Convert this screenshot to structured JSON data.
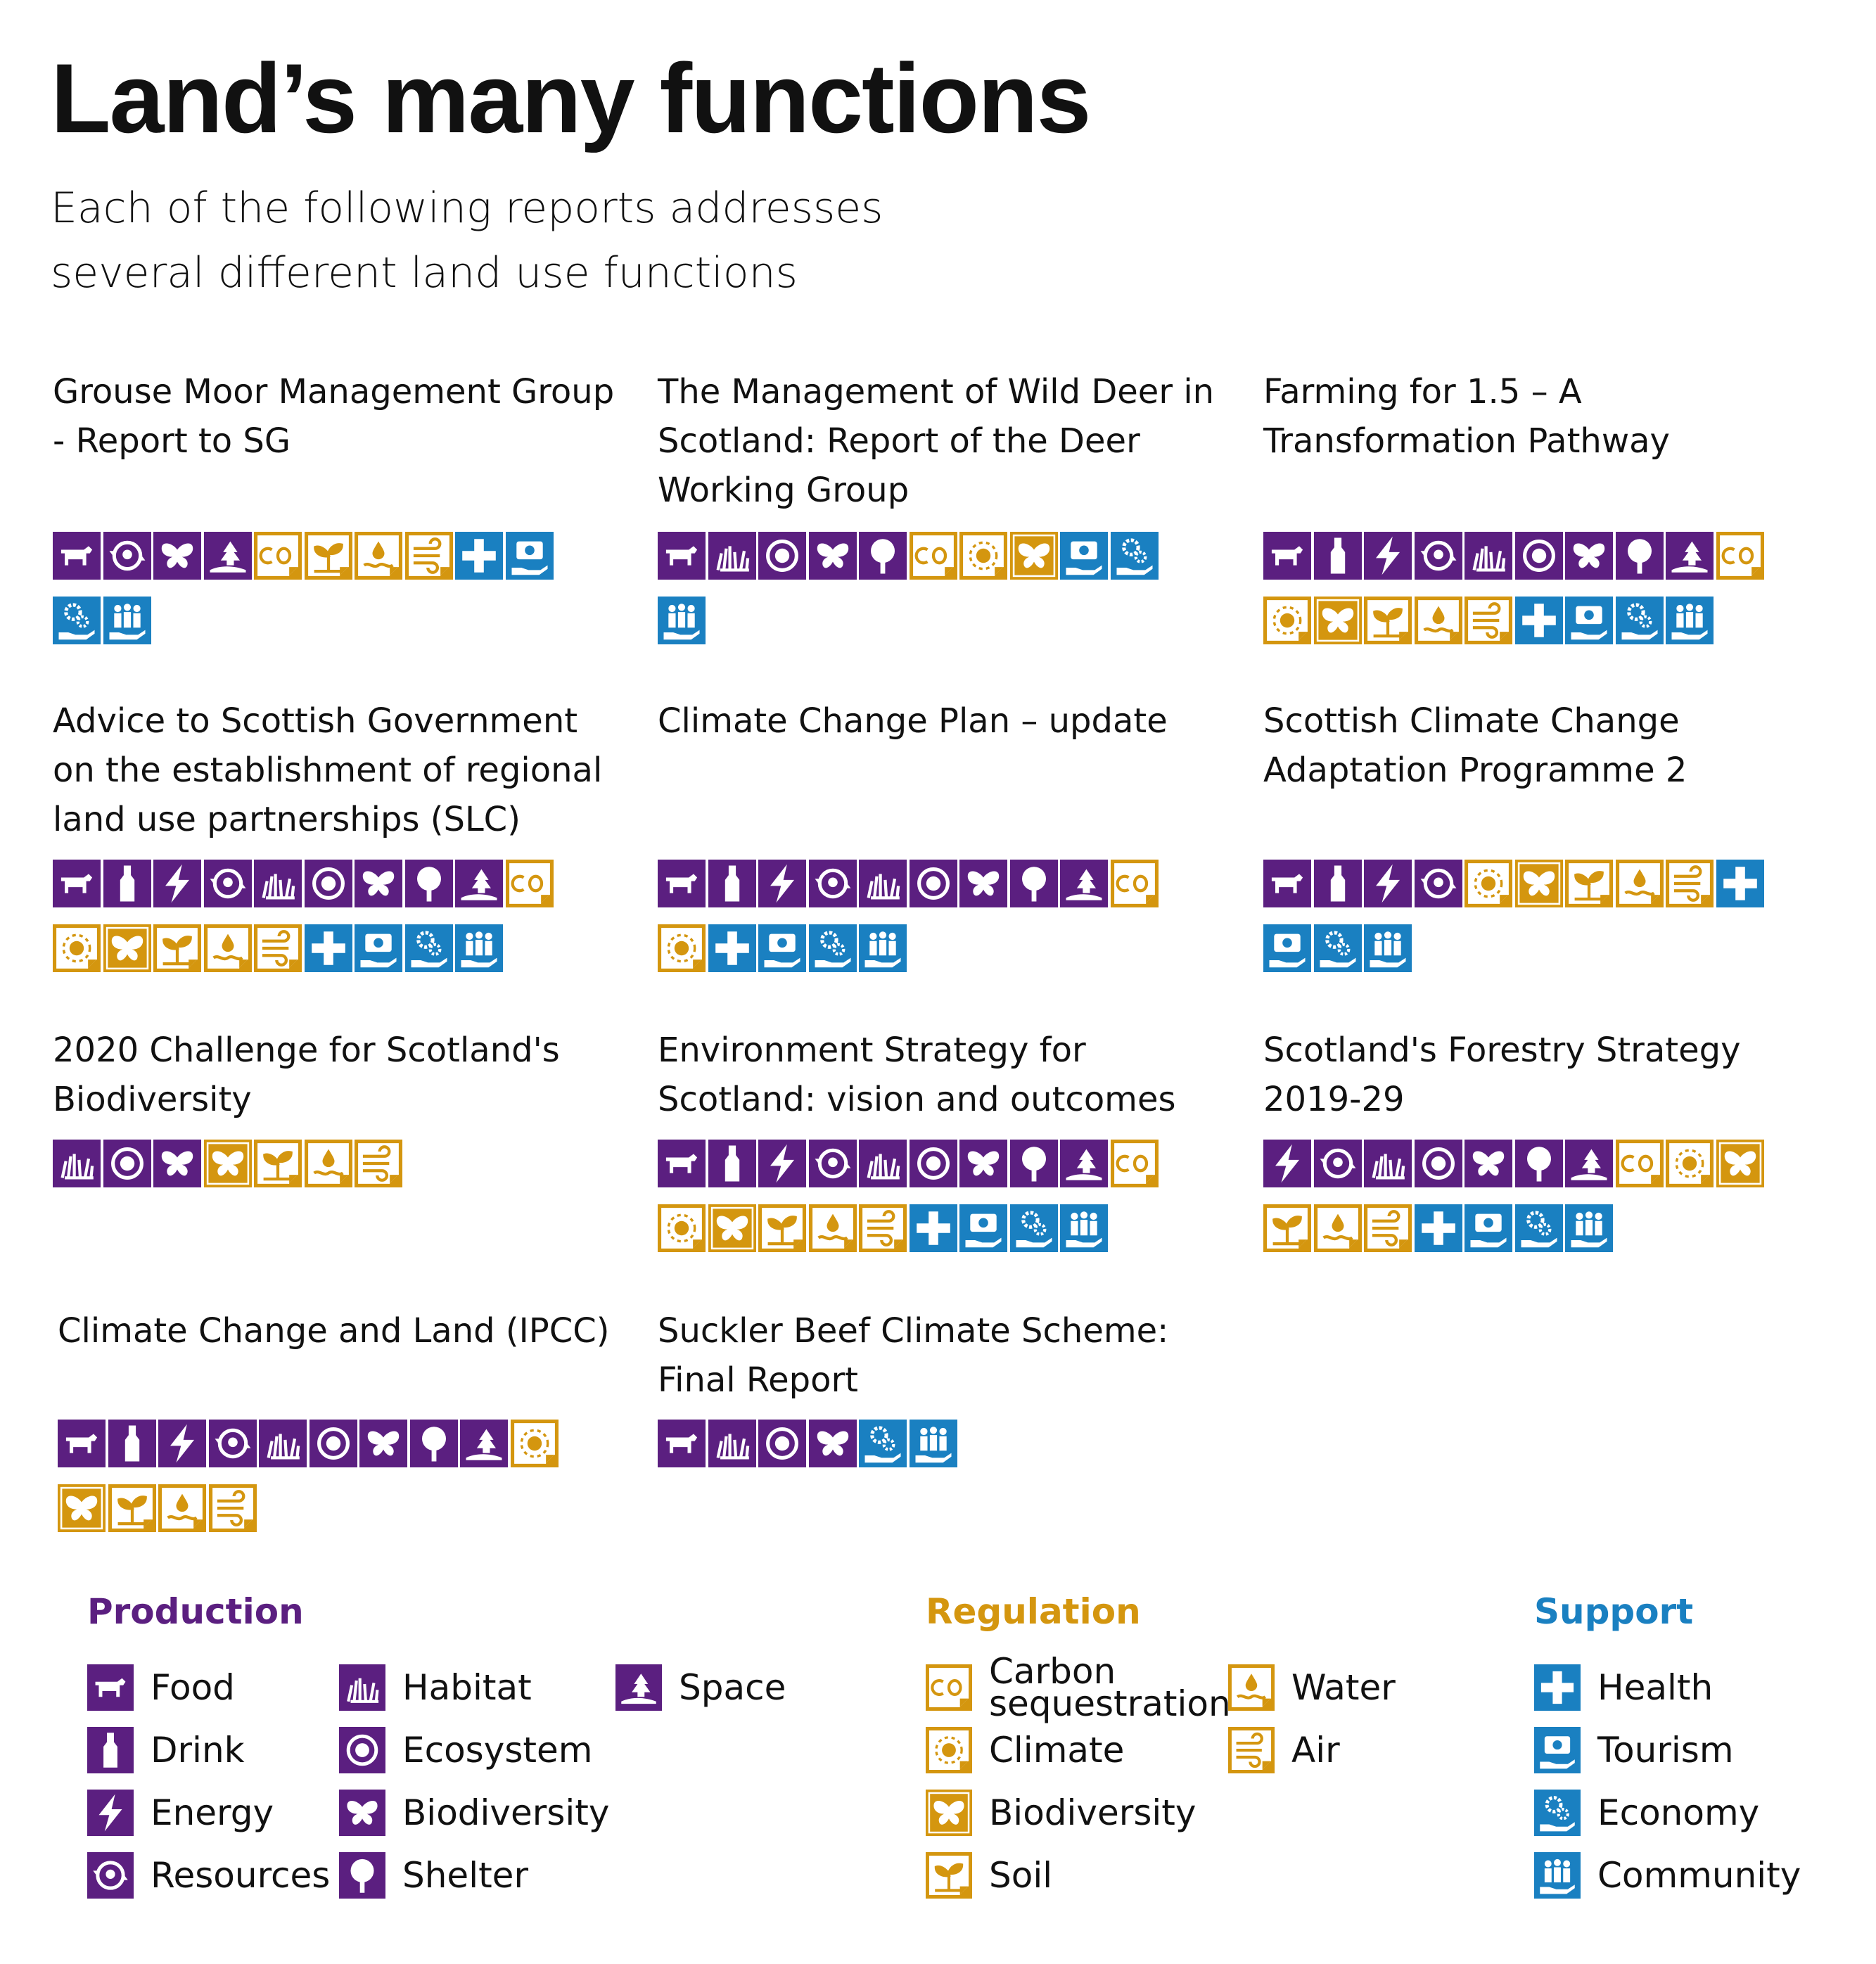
{
  "header": {
    "title": "Land’s many functions",
    "subtitle": "Each of the following reports addresses several different land use functions"
  },
  "reports": [
    {
      "title": "Grouse Moor Management Group - Report to SG"
    },
    {
      "title": "The Management of Wild Deer in Scotland: Report of the Deer Working Group"
    },
    {
      "title": "Farming for 1.5 – A  Transformation Pathway"
    },
    {
      "title": "Advice to Scottish Government on the establishment of regional land use partnerships (SLC)"
    },
    {
      "title": "Climate Change Plan – update"
    },
    {
      "title": "Scottish Climate Change Adaptation Programme 2"
    },
    {
      "title": "2020 Challenge for Scotland's Biodiversity"
    },
    {
      "title": "Environment Strategy for Scotland: vision and outcomes"
    },
    {
      "title": "Scotland's Forestry Strategy 2019-29"
    },
    {
      "title": "Climate Change and Land (IPCC)"
    },
    {
      "title": "Suckler Beef Climate Scheme: Final Report"
    }
  ],
  "legend": {
    "groups": [
      {
        "name": "Production",
        "items": [
          "Food",
          "Drink",
          "Energy",
          "Resources",
          "Habitat",
          "Ecosystem",
          "Biodiversity",
          "Shelter",
          "Space"
        ]
      },
      {
        "name": "Regulation",
        "items": [
          "Carbon sequestration",
          "Climate",
          "Biodiversity",
          "Soil",
          "Water",
          "Air"
        ]
      },
      {
        "name": "Support",
        "items": [
          "Health",
          "Tourism",
          "Economy",
          "Community"
        ]
      }
    ]
  }
}
